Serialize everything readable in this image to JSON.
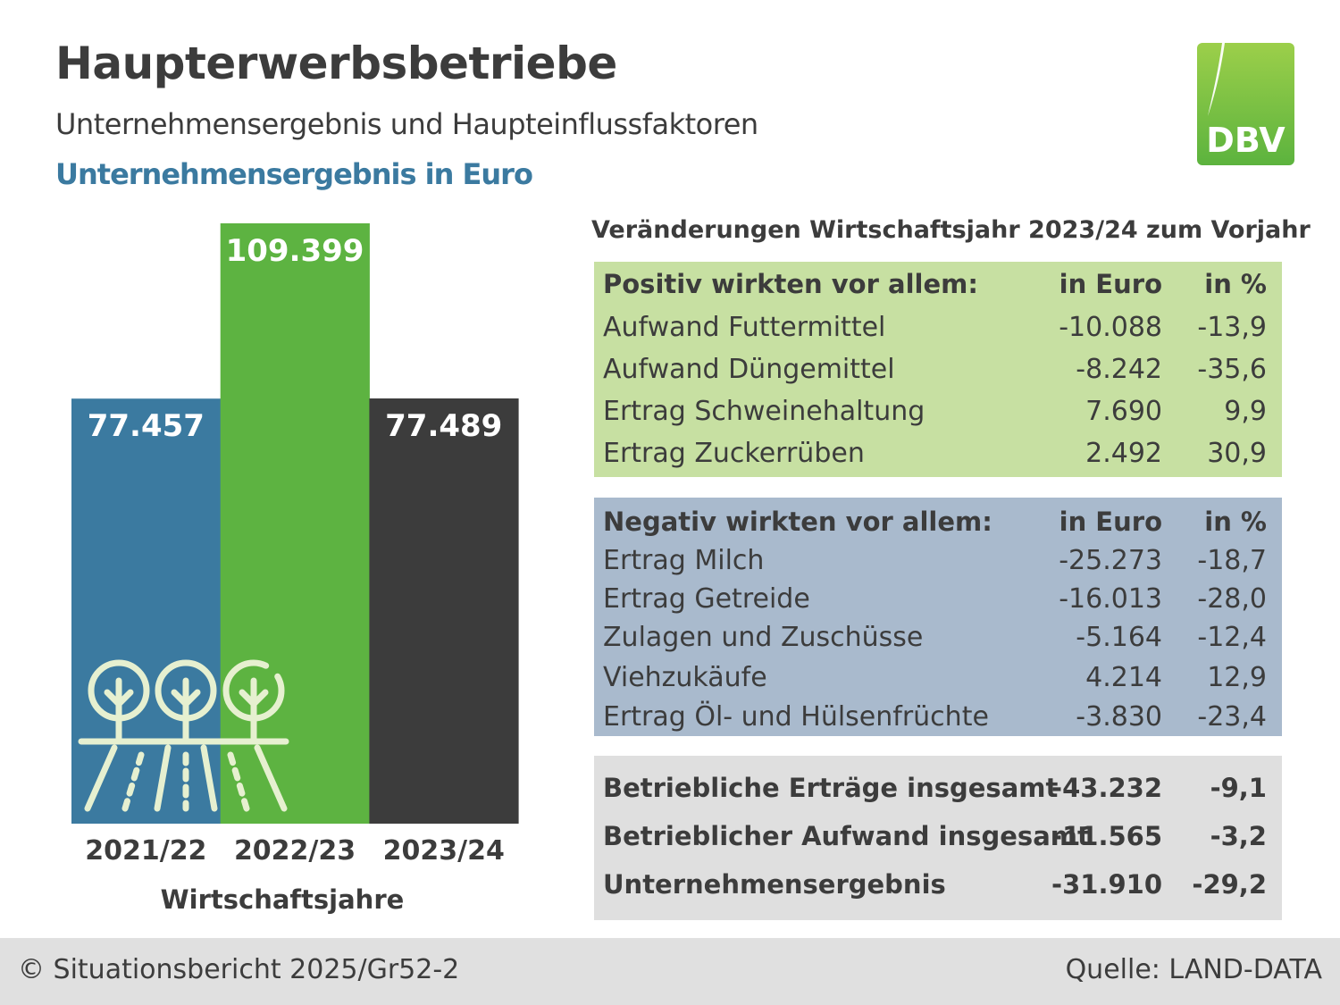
{
  "header": {
    "title": "Haupterwerbsbetriebe",
    "subtitle": "Unternehmensergebnis und Haupteinflussfaktoren",
    "chart_label": "Unternehmensergebnis in Euro"
  },
  "logo": {
    "text": "DBV",
    "color_top": "#9ccf4a",
    "color_bottom": "#5cb33e"
  },
  "chart_data": {
    "type": "bar",
    "title": "Unternehmensergebnis in Euro",
    "xlabel": "Wirtschaftsjahre",
    "ylabel": "",
    "categories": [
      "2021/22",
      "2022/23",
      "2023/24"
    ],
    "values": [
      77457,
      109399,
      77489
    ],
    "value_labels": [
      "77.457",
      "109.399",
      "77.489"
    ],
    "colors": [
      "#3b7aa0",
      "#5db341",
      "#3c3c3c"
    ],
    "ylim": [
      0,
      109399
    ],
    "grid": false,
    "legend": "none"
  },
  "table": {
    "title": "Veränderungen Wirtschaftsjahr 2023/24 zum Vorjahr",
    "positive": {
      "header": {
        "label": "Positiv wirkten vor allem:",
        "eur": "in Euro",
        "pct": "in %"
      },
      "rows": [
        {
          "label": "Aufwand Futtermittel",
          "eur": "-10.088",
          "pct": "-13,9"
        },
        {
          "label": "Aufwand Düngemittel",
          "eur": "-8.242",
          "pct": "-35,6"
        },
        {
          "label": "Ertrag Schweinehaltung",
          "eur": "7.690",
          "pct": "9,9"
        },
        {
          "label": "Ertrag Zuckerrüben",
          "eur": "2.492",
          "pct": "30,9"
        }
      ]
    },
    "negative": {
      "header": {
        "label": "Negativ wirkten vor allem:",
        "eur": "in Euro",
        "pct": "in %"
      },
      "rows": [
        {
          "label": "Ertrag Milch",
          "eur": "-25.273",
          "pct": "-18,7"
        },
        {
          "label": "Ertrag Getreide",
          "eur": "-16.013",
          "pct": "-28,0"
        },
        {
          "label": "Zulagen und Zuschüsse",
          "eur": "-5.164",
          "pct": "-12,4"
        },
        {
          "label": "Viehzukäufe",
          "eur": "4.214",
          "pct": "12,9"
        },
        {
          "label": "Ertrag Öl- und Hülsenfrüchte",
          "eur": "-3.830",
          "pct": "-23,4"
        }
      ]
    },
    "totals": [
      {
        "label": "Betriebliche Erträge insgesamt",
        "eur": "-43.232",
        "pct": "-9,1"
      },
      {
        "label": "Betrieblicher Aufwand insgesamt",
        "eur": "-11.565",
        "pct": "-3,2"
      },
      {
        "label": "Unternehmensergebnis",
        "eur": "-31.910",
        "pct": "-29,2"
      }
    ]
  },
  "footer": {
    "left": "© Situationsbericht 2025/Gr52-2",
    "right": "Quelle: LAND-DATA"
  }
}
